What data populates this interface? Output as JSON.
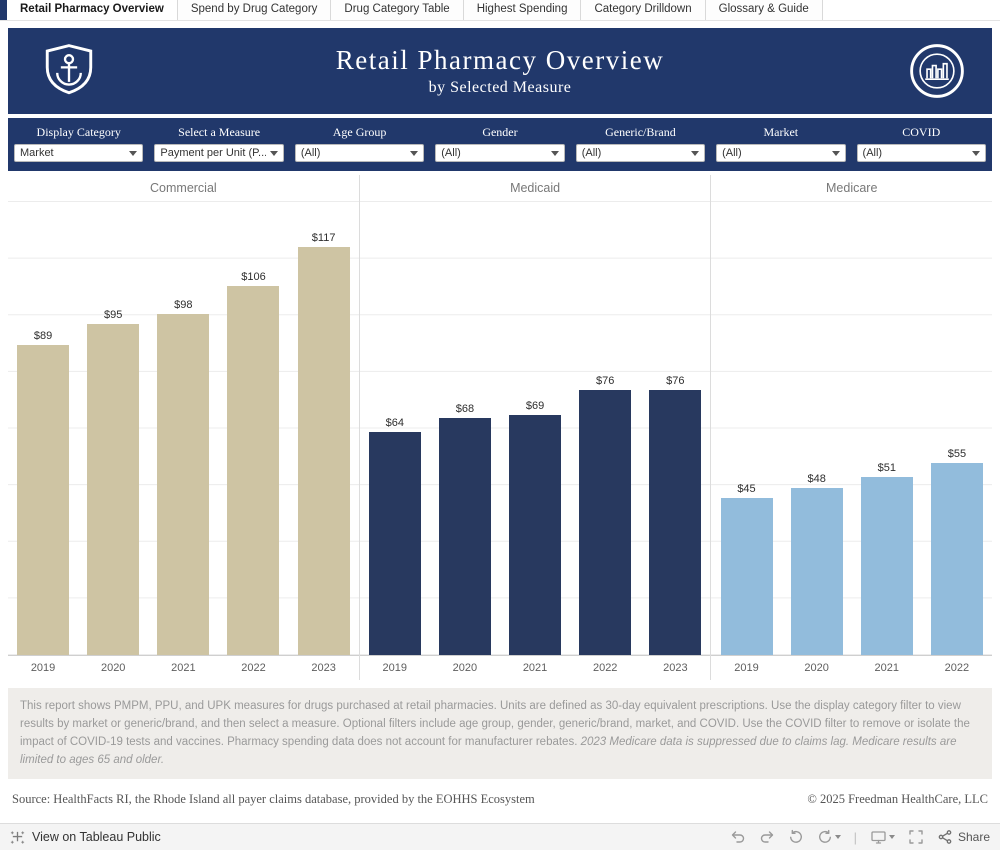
{
  "tabs": [
    {
      "label": "Retail Pharmacy Overview",
      "active": true
    },
    {
      "label": "Spend by Drug Category",
      "active": false
    },
    {
      "label": "Drug Category Table",
      "active": false
    },
    {
      "label": "Highest Spending",
      "active": false
    },
    {
      "label": "Category Drilldown",
      "active": false
    },
    {
      "label": "Glossary & Guide",
      "active": false
    }
  ],
  "header": {
    "title": "Retail Pharmacy Overview",
    "subtitle": "by Selected Measure"
  },
  "filters": [
    {
      "label": "Display Category",
      "value": "Market"
    },
    {
      "label": "Select a Measure",
      "value": "Payment per Unit (P..."
    },
    {
      "label": "Age Group",
      "value": "(All)"
    },
    {
      "label": "Gender",
      "value": "(All)"
    },
    {
      "label": "Generic/Brand",
      "value": "(All)"
    },
    {
      "label": "Market",
      "value": "(All)"
    },
    {
      "label": "COVID",
      "value": "(All)"
    }
  ],
  "chart_data": {
    "type": "bar",
    "ylim": [
      0,
      130
    ],
    "unit": "$",
    "grid": true,
    "panels": [
      {
        "title": "Commercial",
        "color": "#cec4a3",
        "categories": [
          "2019",
          "2020",
          "2021",
          "2022",
          "2023"
        ],
        "values": [
          89,
          95,
          98,
          106,
          117
        ],
        "labels": [
          "$89",
          "$95",
          "$98",
          "$106",
          "$117"
        ]
      },
      {
        "title": "Medicaid",
        "color": "#28395f",
        "categories": [
          "2019",
          "2020",
          "2021",
          "2022",
          "2023"
        ],
        "values": [
          64,
          68,
          69,
          76,
          76
        ],
        "labels": [
          "$64",
          "$68",
          "$69",
          "$76",
          "$76"
        ]
      },
      {
        "title": "Medicare",
        "color": "#92bcdc",
        "categories": [
          "2019",
          "2020",
          "2021",
          "2022"
        ],
        "values": [
          45,
          48,
          51,
          55
        ],
        "labels": [
          "$45",
          "$48",
          "$51",
          "$55"
        ]
      }
    ]
  },
  "footnote": {
    "text": "This report shows PMPM, PPU, and UPK measures for drugs purchased at retail pharmacies. Units are defined as 30-day equivalent prescriptions. Use the display category filter to view results by market or generic/brand, and then select a measure. Optional filters include age group, gender, generic/brand, market, and COVID. Use the COVID filter to remove or isolate the impact of COVID-19 tests and vaccines. Pharmacy spending data does not account for manufacturer rebates. ",
    "italic": "2023 Medicare data is suppressed due to claims lag. Medicare results are limited to ages 65 and older."
  },
  "source": {
    "left": "Source: HealthFacts RI, the Rhode Island all payer claims database, provided by the EOHHS Ecosystem",
    "right": "© 2025 Freedman HealthCare, LLC"
  },
  "toolbar": {
    "view_on": "View on Tableau Public",
    "share": "Share",
    "icons": [
      "tableau-logo",
      "undo",
      "redo",
      "reset",
      "refresh",
      "device-preview",
      "fullscreen",
      "share"
    ]
  }
}
